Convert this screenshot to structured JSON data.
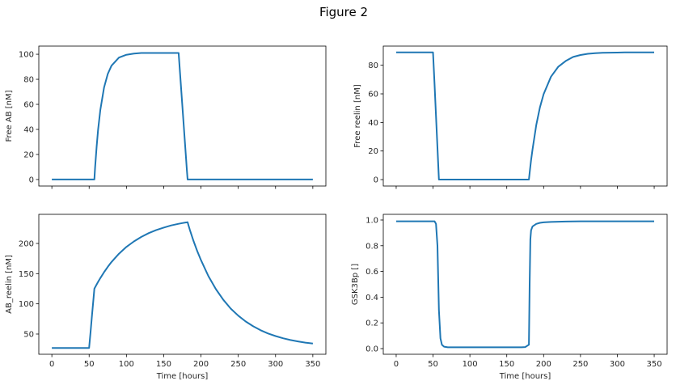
{
  "chart_data": {
    "type": "line",
    "title": "Figure 2",
    "line_color": "#1f77b4",
    "x": [
      0,
      10,
      20,
      30,
      40,
      50,
      52,
      54,
      56,
      57,
      58,
      60,
      62,
      65,
      70,
      75,
      80,
      90,
      100,
      110,
      120,
      130,
      140,
      150,
      160,
      170,
      175,
      180,
      181,
      182,
      183,
      185,
      190,
      195,
      200,
      210,
      220,
      230,
      240,
      250,
      260,
      270,
      280,
      290,
      300,
      310,
      320,
      330,
      340,
      350
    ],
    "panels": [
      {
        "name": "free-ab",
        "ylabel": "Free AB [nM]",
        "xlabel": "",
        "xlim": [
          -17.5,
          367.5
        ],
        "ylim": [
          -5.2,
          106.5
        ],
        "yticks": [
          0,
          20,
          40,
          60,
          80,
          100
        ],
        "ytick_labels": [
          "0",
          "20",
          "40",
          "60",
          "80",
          "100"
        ],
        "xticks": [
          0,
          50,
          100,
          150,
          200,
          250,
          300,
          350
        ],
        "xtick_labels": [],
        "y": [
          0,
          0,
          0,
          0,
          0,
          0,
          0,
          0,
          0,
          0,
          9.6,
          26.2,
          39.7,
          55.6,
          73.5,
          84.3,
          90.9,
          97.3,
          99.6,
          100.5,
          101,
          101,
          101,
          101,
          101,
          101,
          58.9,
          16.8,
          8.4,
          0,
          0,
          0,
          0,
          0,
          0,
          0,
          0,
          0,
          0,
          0,
          0,
          0,
          0,
          0,
          0,
          0,
          0,
          0,
          0,
          0
        ]
      },
      {
        "name": "free-reelin",
        "ylabel": "Free reelin [nM]",
        "xlabel": "",
        "xlim": [
          -17.5,
          367.5
        ],
        "ylim": [
          -4.5,
          93.4
        ],
        "yticks": [
          0,
          20,
          40,
          60,
          80
        ],
        "ytick_labels": [
          "0",
          "20",
          "40",
          "60",
          "80"
        ],
        "xticks": [
          0,
          50,
          100,
          150,
          200,
          250,
          300,
          350
        ],
        "xtick_labels": [],
        "y": [
          89,
          89,
          89,
          89,
          89,
          89,
          66.75,
          44.5,
          22.25,
          11.1,
          0,
          0,
          0,
          0,
          0,
          0,
          0,
          0,
          0,
          0,
          0,
          0,
          0,
          0,
          0,
          0,
          0,
          0,
          4.8,
          9.3,
          13.7,
          21.2,
          38.2,
          50.5,
          59.8,
          72.0,
          79.0,
          83.0,
          85.8,
          87.2,
          88.0,
          88.4,
          88.7,
          88.8,
          88.9,
          89,
          89,
          89,
          89,
          89
        ]
      },
      {
        "name": "ab-reelin",
        "ylabel": "AB_reelin [nM]",
        "xlabel": "Time [hours]",
        "xlim": [
          -17.5,
          367.5
        ],
        "ylim": [
          16.5,
          248.2
        ],
        "yticks": [
          50,
          100,
          150,
          200
        ],
        "ytick_labels": [
          "50",
          "100",
          "150",
          "200"
        ],
        "xticks": [
          0,
          50,
          100,
          150,
          200,
          250,
          300,
          350
        ],
        "xtick_labels": [
          "0",
          "50",
          "100",
          "150",
          "200",
          "250",
          "300",
          "350"
        ],
        "y": [
          27,
          27,
          27,
          27,
          27,
          27,
          55,
          83,
          111,
          125,
          127.4,
          132.0,
          136.4,
          142.7,
          152.5,
          161.3,
          169.3,
          183.0,
          194.2,
          203.4,
          210.9,
          217.1,
          222.2,
          226.3,
          229.8,
          232.5,
          233.7,
          234.8,
          235.0,
          235.2,
          230.9,
          222.9,
          204.2,
          187.4,
          172.2,
          145.8,
          124.3,
          106.7,
          92.1,
          80.4,
          70.7,
          62.8,
          56.3,
          50.9,
          46.6,
          43.0,
          40.1,
          37.8,
          35.8,
          34.3
        ]
      },
      {
        "name": "gsk3bp",
        "ylabel": "GSK3Bp []",
        "xlabel": "Time [hours]",
        "xlim": [
          -17.5,
          367.5
        ],
        "ylim": [
          -0.044,
          1.044
        ],
        "yticks": [
          0,
          0.2,
          0.4,
          0.6,
          0.8,
          1.0
        ],
        "ytick_labels": [
          "0.0",
          "0.2",
          "0.4",
          "0.6",
          "0.8",
          "1.0"
        ],
        "xticks": [
          0,
          50,
          100,
          150,
          200,
          250,
          300,
          350
        ],
        "xtick_labels": [
          "0",
          "50",
          "100",
          "150",
          "200",
          "250",
          "300",
          "350"
        ],
        "y": [
          0.99,
          0.99,
          0.99,
          0.99,
          0.99,
          0.99,
          0.99,
          0.97,
          0.8,
          0.55,
          0.3,
          0.08,
          0.03,
          0.015,
          0.01,
          0.01,
          0.01,
          0.01,
          0.01,
          0.01,
          0.01,
          0.01,
          0.01,
          0.01,
          0.01,
          0.01,
          0.012,
          0.03,
          0.5,
          0.85,
          0.92,
          0.95,
          0.97,
          0.978,
          0.982,
          0.985,
          0.987,
          0.988,
          0.989,
          0.99,
          0.99,
          0.99,
          0.99,
          0.99,
          0.99,
          0.99,
          0.99,
          0.99,
          0.99,
          0.99
        ]
      }
    ]
  }
}
